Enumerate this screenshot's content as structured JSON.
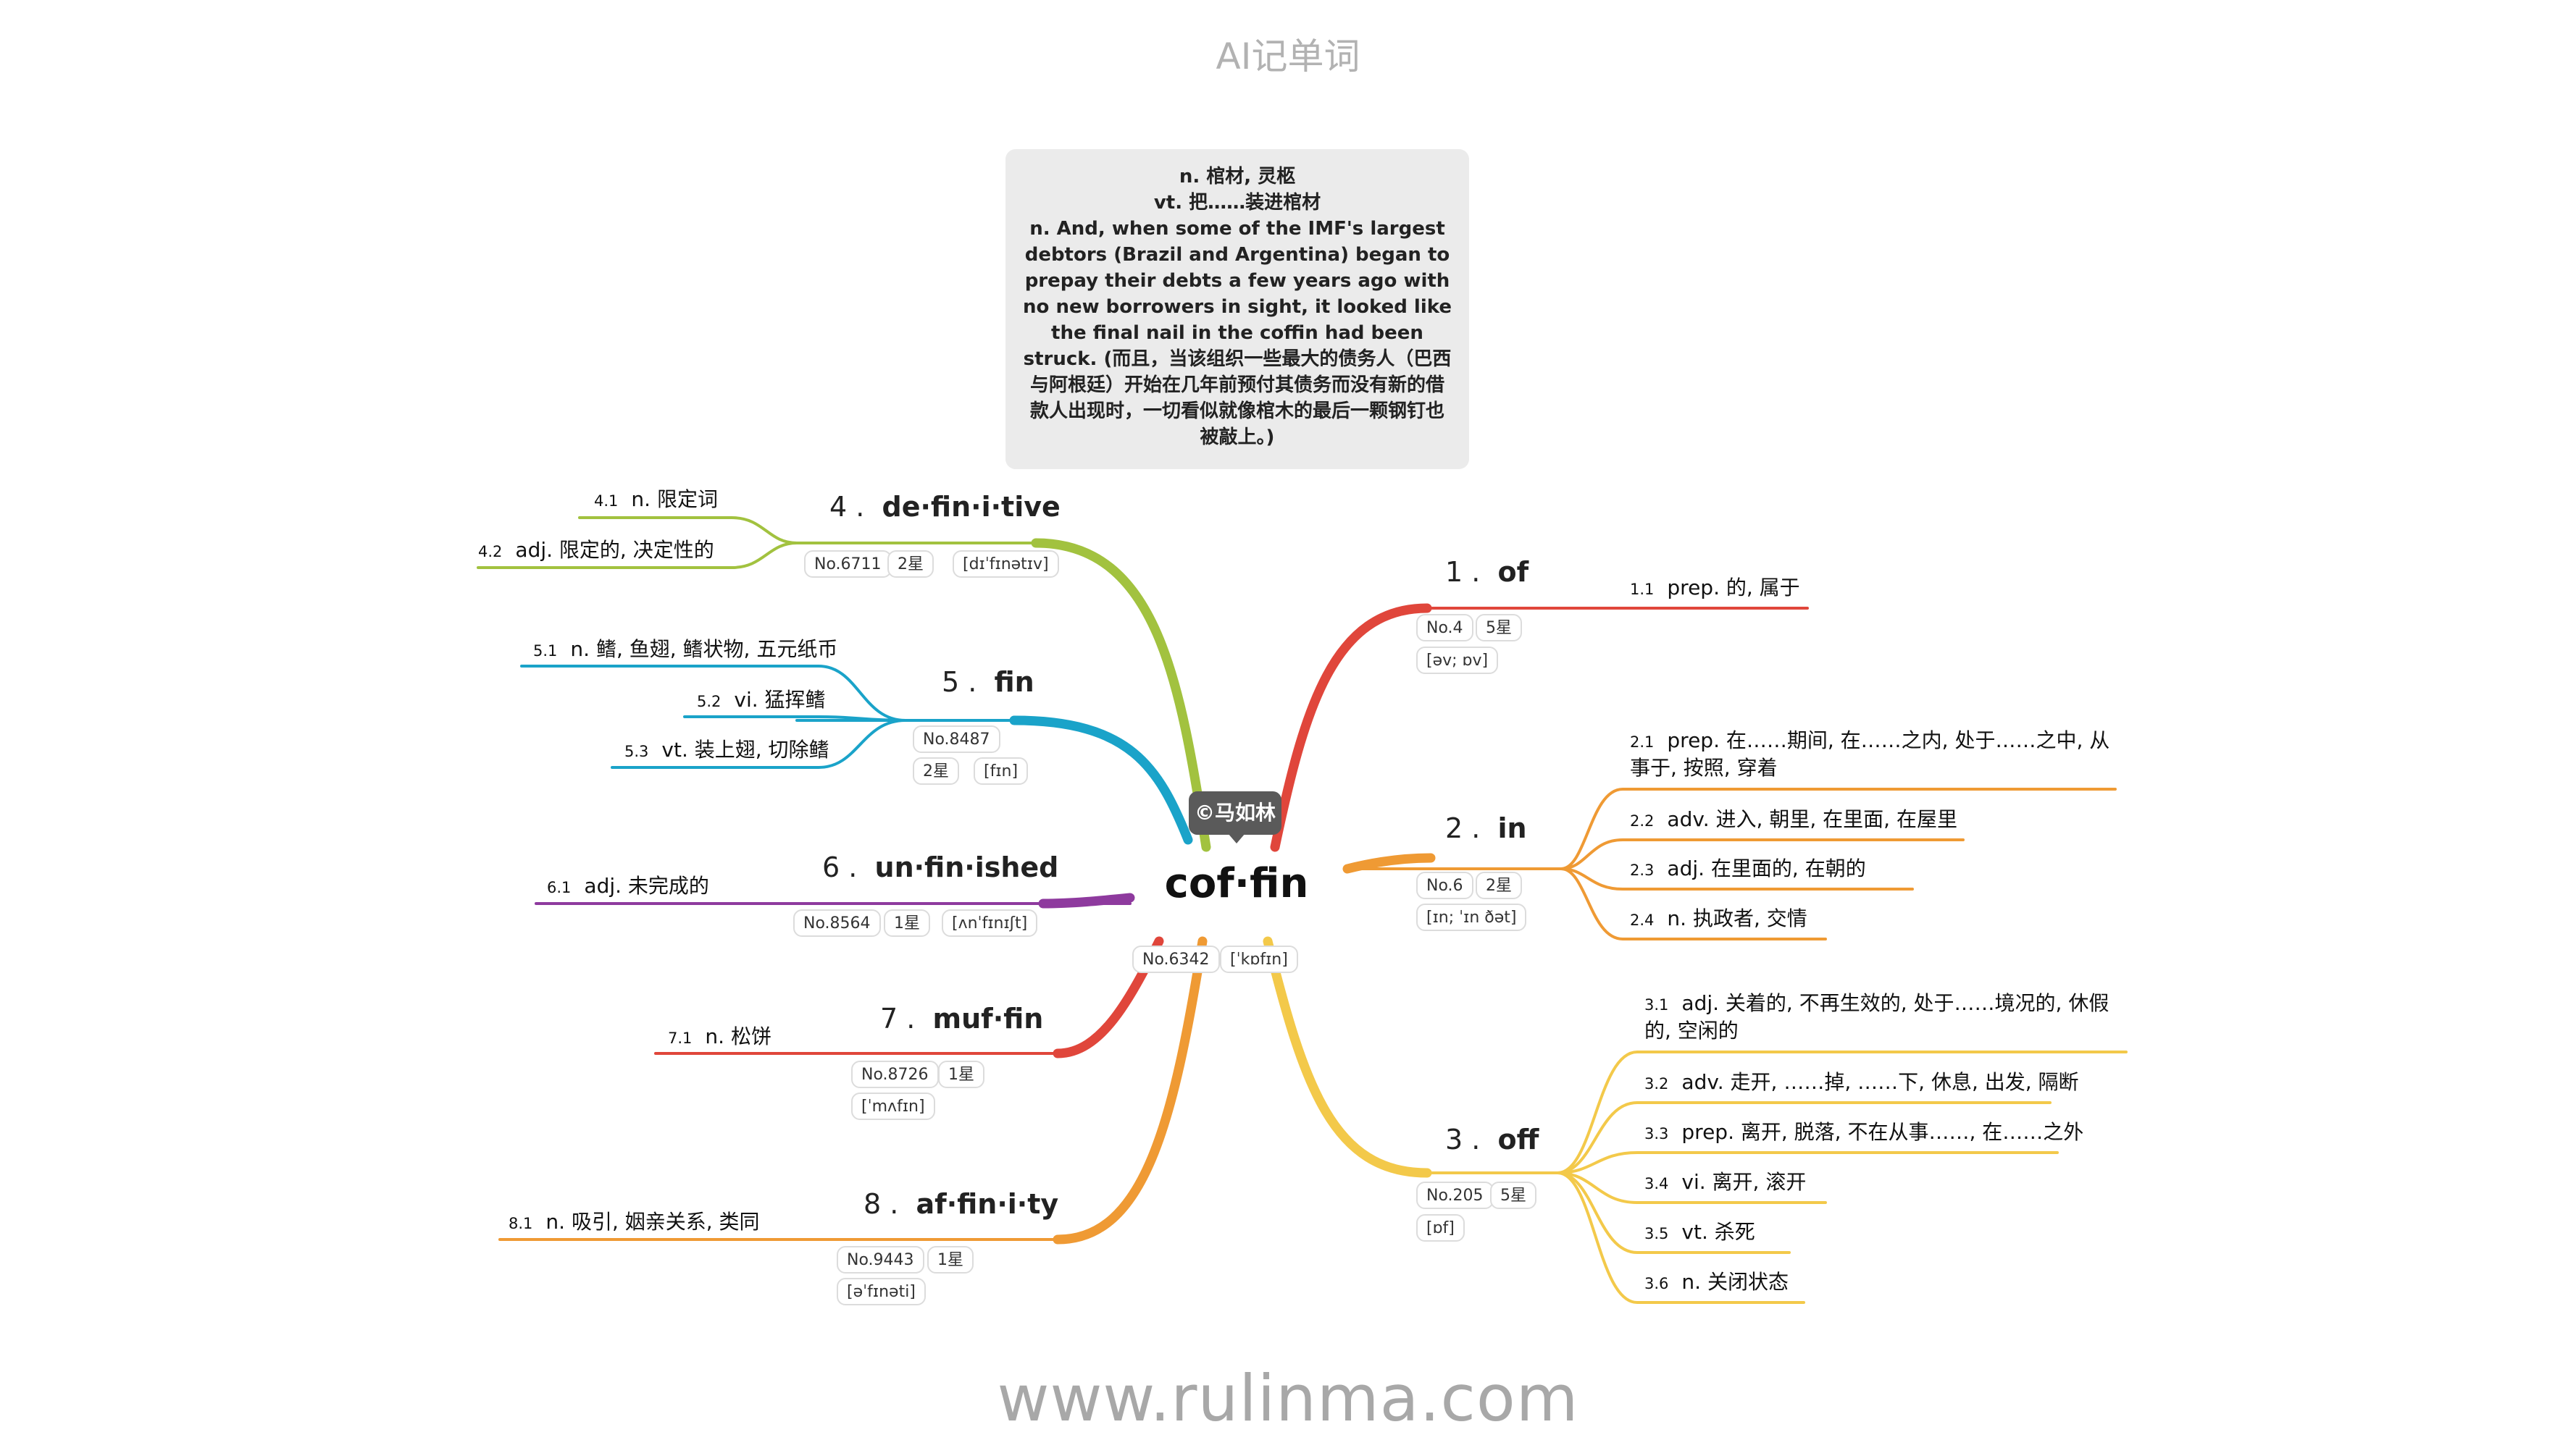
{
  "app_title": "AI记单词",
  "watermark": "www.rulinma.com",
  "central": {
    "word": "cof·fin",
    "no": "No.6342",
    "phonetic": "[ˈkɒfɪn]",
    "author": "©马如林"
  },
  "note": {
    "line1": "n. 棺材, 灵柩",
    "line2": "vt. 把……装进棺材",
    "line3": "n. And, when some of the IMF's largest debtors (Brazil and Argentina) began to prepay their debts a few years ago with no new borrowers in sight, it looked like the final nail in the coffin had been struck. (而且，当该组织一些最大的债务人（巴西与阿根廷）开始在几年前预付其债务而没有新的借款人出现时，一切看似就像棺木的最后一颗钢钉也被敲上。)"
  },
  "colors": {
    "of": "#e0463b",
    "in": "#ef9a34",
    "off": "#f3c94a",
    "definitive": "#a2c23f",
    "fin": "#1aa3c9",
    "unfinished": "#8e3a9e",
    "muffin": "#e0463b",
    "affinity": "#ef9a34"
  },
  "branches": [
    {
      "num": "1",
      "word": "of",
      "no": "No.4",
      "stars": "5星",
      "phonetic": "[əv; ɒv]",
      "meanings": [
        {
          "idx": "1.1",
          "text": "prep. 的, 属于"
        }
      ]
    },
    {
      "num": "2",
      "word": "in",
      "no": "No.6",
      "stars": "2星",
      "phonetic": "[ɪn; ˈɪn ðət]",
      "meanings": [
        {
          "idx": "2.1",
          "text": "prep. 在……期间, 在……之内, 处于……之中, 从事于, 按照, 穿着"
        },
        {
          "idx": "2.2",
          "text": "adv. 进入, 朝里, 在里面, 在屋里"
        },
        {
          "idx": "2.3",
          "text": "adj. 在里面的, 在朝的"
        },
        {
          "idx": "2.4",
          "text": "n. 执政者, 交情"
        }
      ]
    },
    {
      "num": "3",
      "word": "off",
      "no": "No.205",
      "stars": "5星",
      "phonetic": "[ɒf]",
      "meanings": [
        {
          "idx": "3.1",
          "text": "adj. 关着的, 不再生效的, 处于……境况的, 休假的, 空闲的"
        },
        {
          "idx": "3.2",
          "text": "adv. 走开, ……掉, ……下, 休息, 出发, 隔断"
        },
        {
          "idx": "3.3",
          "text": "prep. 离开, 脱落, 不在从事……, 在……之外"
        },
        {
          "idx": "3.4",
          "text": "vi. 离开, 滚开"
        },
        {
          "idx": "3.5",
          "text": "vt. 杀死"
        },
        {
          "idx": "3.6",
          "text": "n. 关闭状态"
        }
      ]
    },
    {
      "num": "4",
      "word": "de·fin·i·tive",
      "no": "No.6711",
      "stars": "2星",
      "phonetic": "[dɪˈfɪnətɪv]",
      "meanings": [
        {
          "idx": "4.1",
          "text": "n. 限定词"
        },
        {
          "idx": "4.2",
          "text": "adj. 限定的, 决定性的"
        }
      ]
    },
    {
      "num": "5",
      "word": "fin",
      "no": "No.8487",
      "stars": "2星",
      "phonetic": "[fɪn]",
      "meanings": [
        {
          "idx": "5.1",
          "text": "n. 鳍, 鱼翅, 鳍状物, 五元纸币"
        },
        {
          "idx": "5.2",
          "text": "vi. 猛挥鳍"
        },
        {
          "idx": "5.3",
          "text": "vt. 装上翅, 切除鳍"
        }
      ]
    },
    {
      "num": "6",
      "word": "un·fin·ished",
      "no": "No.8564",
      "stars": "1星",
      "phonetic": "[ʌnˈfɪnɪʃt]",
      "meanings": [
        {
          "idx": "6.1",
          "text": "adj. 未完成的"
        }
      ]
    },
    {
      "num": "7",
      "word": "muf·fin",
      "no": "No.8726",
      "stars": "1星",
      "phonetic": "[ˈmʌfɪn]",
      "meanings": [
        {
          "idx": "7.1",
          "text": "n. 松饼"
        }
      ]
    },
    {
      "num": "8",
      "word": "af·fin·i·ty",
      "no": "No.9443",
      "stars": "1星",
      "phonetic": "[əˈfɪnəti]",
      "meanings": [
        {
          "idx": "8.1",
          "text": "n. 吸引, 姻亲关系, 类同"
        }
      ]
    }
  ]
}
